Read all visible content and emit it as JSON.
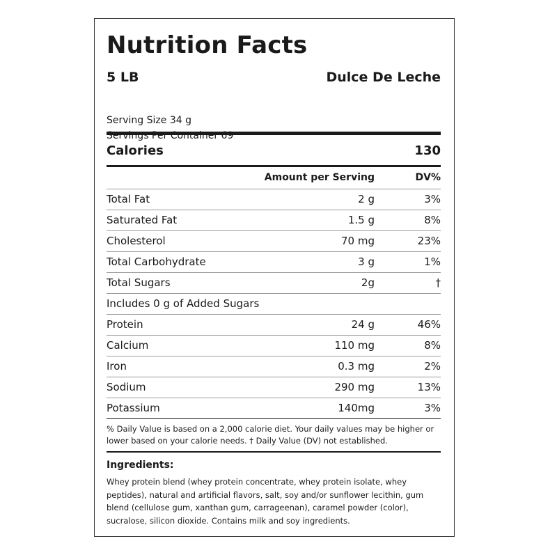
{
  "label": {
    "title": "Nutrition Facts",
    "size": "5 LB",
    "flavor": "Dulce De Leche",
    "serving_size": "Serving Size 34 g",
    "servings_per_container": "Servings Per Container 69",
    "calories_label": "Calories",
    "calories_value": "130",
    "col_amount": "Amount per Serving",
    "col_dv": "DV%",
    "rows": [
      {
        "name": "Total Fat",
        "amount": "2 g",
        "dv": "3%"
      },
      {
        "name": "Saturated Fat",
        "amount": "1.5 g",
        "dv": "8%"
      },
      {
        "name": "Cholesterol",
        "amount": "70 mg",
        "dv": "23%"
      },
      {
        "name": "Total Carbohydrate",
        "amount": "3 g",
        "dv": "1%"
      },
      {
        "name": "Total Sugars",
        "amount": "2g",
        "dv": "†"
      },
      {
        "name": "Includes 0 g of Added Sugars",
        "amount": "",
        "dv": ""
      },
      {
        "name": "Protein",
        "amount": "24 g",
        "dv": "46%"
      },
      {
        "name": "Calcium",
        "amount": "110 mg",
        "dv": "8%"
      },
      {
        "name": "Iron",
        "amount": "0.3 mg",
        "dv": "2%"
      },
      {
        "name": "Sodium",
        "amount": "290 mg",
        "dv": "13%"
      },
      {
        "name": "Potassium",
        "amount": "140mg",
        "dv": "3%"
      }
    ],
    "footnote": "% Daily Value is based on a 2,000 calorie diet. Your daily values may be higher or lower based on your calorie needs. † Daily Value (DV) not established.",
    "ingredients_title": "Ingredients:",
    "ingredients_text": "Whey protein blend (whey protein concentrate, whey protein isolate, whey peptides), natural and artificial flavors, salt, soy and/or sunflower lecithin, gum blend (cellulose gum, xanthan gum, carrageenan), caramel powder (color), sucralose, silicon dioxide. Contains milk and soy ingredients."
  }
}
